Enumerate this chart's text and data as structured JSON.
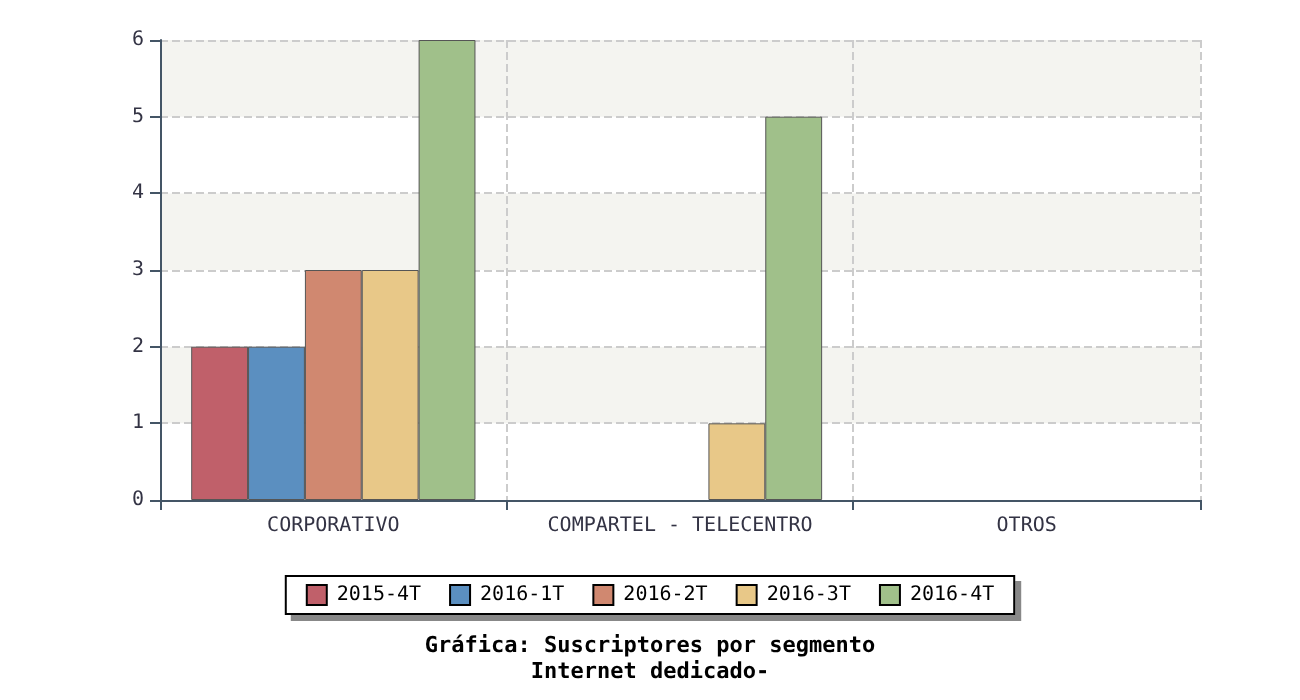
{
  "chart_data": {
    "type": "bar",
    "title": "Gráfica: Suscriptores por segmento",
    "subtitle": "Internet dedicado-",
    "categories": [
      "CORPORATIVO",
      "COMPARTEL - TELECENTRO",
      "OTROS"
    ],
    "series": [
      {
        "name": "2015-4T",
        "color": "#c0606a",
        "values": [
          2,
          null,
          null
        ]
      },
      {
        "name": "2016-1T",
        "color": "#5b8fc0",
        "values": [
          2,
          null,
          null
        ]
      },
      {
        "name": "2016-2T",
        "color": "#d08870",
        "values": [
          3,
          null,
          null
        ]
      },
      {
        "name": "2016-3T",
        "color": "#e8c888",
        "values": [
          3,
          1,
          null
        ]
      },
      {
        "name": "2016-4T",
        "color": "#a0c08a",
        "values": [
          6,
          5,
          null
        ]
      }
    ],
    "ylim": [
      0,
      6
    ],
    "yticks": [
      0,
      1,
      2,
      3,
      4,
      5,
      6
    ],
    "grid": true,
    "legend": "bottom"
  }
}
